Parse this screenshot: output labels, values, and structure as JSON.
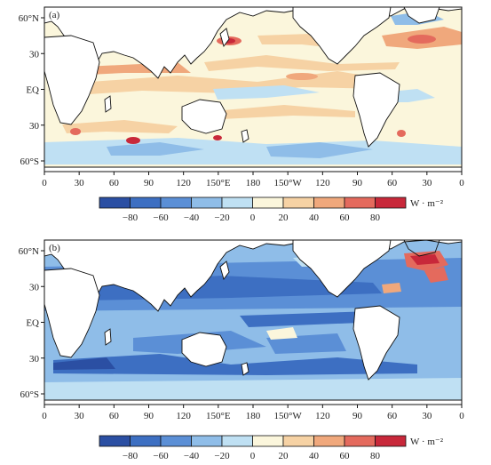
{
  "panels": [
    {
      "label": "(a)",
      "lat_ticks": [
        "60°N",
        "30",
        "EQ",
        "30",
        "60°S"
      ],
      "lon_ticks": [
        "0",
        "30",
        "60",
        "90",
        "120",
        "150°E",
        "180",
        "150°W",
        "120",
        "90",
        "60",
        "30",
        "0"
      ]
    },
    {
      "label": "(b)",
      "lat_ticks": [
        "60°N",
        "30",
        "EQ",
        "30",
        "60°S"
      ],
      "lon_ticks": [
        "0",
        "30",
        "60",
        "90",
        "120",
        "150°E",
        "180",
        "150°W",
        "120",
        "90",
        "60",
        "30",
        "0"
      ]
    }
  ],
  "colorbar": {
    "tick_labels": [
      "-80",
      "-60",
      "-40",
      "-20",
      "0",
      "20",
      "40",
      "60",
      "80"
    ],
    "unit": "W · m⁻²",
    "colors": [
      "#2b4fa3",
      "#3d6fc2",
      "#5b8fd6",
      "#8fbde8",
      "#bfe0f3",
      "#fbf6dc",
      "#f6d2a4",
      "#f0a87c",
      "#e46a5d",
      "#c8283a"
    ]
  }
}
